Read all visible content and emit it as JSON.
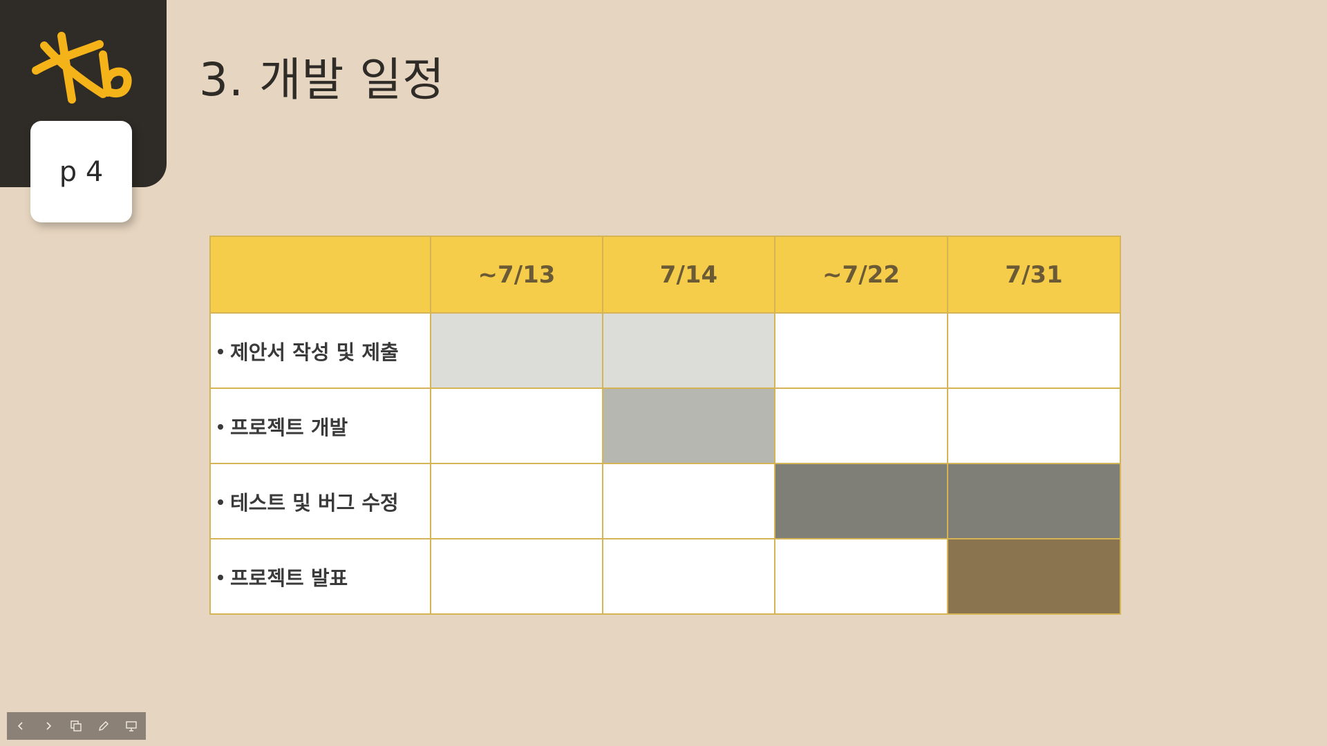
{
  "slide": {
    "title": "3. 개발 일정",
    "page_label": "p 4"
  },
  "schedule": {
    "columns": [
      "",
      "~7/13",
      "7/14",
      "~7/22",
      "7/31"
    ],
    "rows": [
      {
        "task": "제안서 작성 및 제출",
        "cells": [
          "#dcdcd8",
          "#dcdcd8",
          "#ffffff",
          "#ffffff"
        ]
      },
      {
        "task": "프로젝트 개발",
        "cells": [
          "#ffffff",
          "#b7b7b1",
          "#ffffff",
          "#ffffff"
        ]
      },
      {
        "task": "테스트 및 버그 수정",
        "cells": [
          "#ffffff",
          "#ffffff",
          "#7f7f77",
          "#7f7f77"
        ]
      },
      {
        "task": "프로젝트 발표",
        "cells": [
          "#ffffff",
          "#ffffff",
          "#ffffff",
          "#8a7450"
        ]
      }
    ]
  },
  "colors": {
    "background": "#e6d5c0",
    "corner_panel": "#2f2b26",
    "logo": "#f5b31a",
    "header_fill": "#f6cd4a",
    "table_border": "#d5b456"
  },
  "toolbar": {
    "icons": [
      "chevron-left-icon",
      "chevron-right-icon",
      "slides-icon",
      "pen-icon",
      "presenter-icon"
    ]
  }
}
